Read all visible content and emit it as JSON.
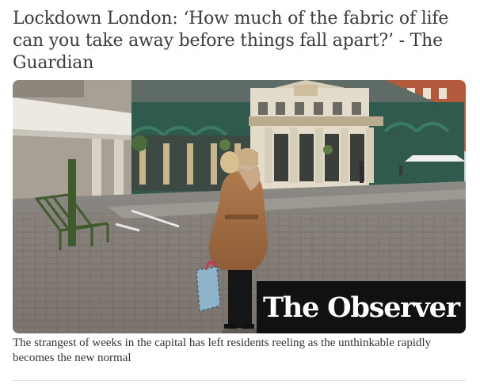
{
  "headline": "Lockdown London: ‘How much of the fabric of life can you take away before things fall apart?’ - The Guardian",
  "image": {
    "alt": "Two women embracing in an empty Covent Garden piazza",
    "brand_overlay": "The Observer"
  },
  "caption": "The strangest of weeks in the capital has left residents reeling as the unthinkable rapidly becomes the new normal"
}
